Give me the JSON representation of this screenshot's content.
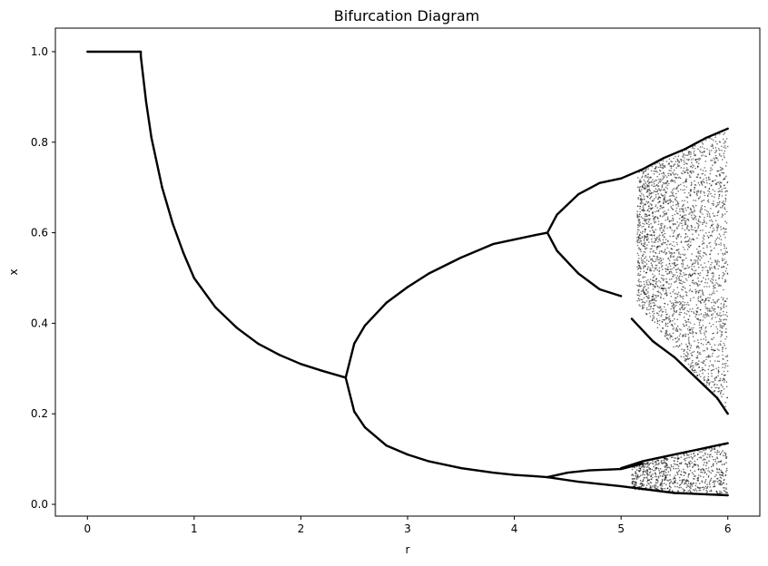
{
  "chart_data": {
    "type": "scatter",
    "title": "Bifurcation Diagram",
    "xlabel": "r",
    "ylabel": "x",
    "xlim": [
      -0.3,
      6.3
    ],
    "ylim": [
      -0.026,
      1.052
    ],
    "x_ticks": [
      0,
      1,
      2,
      3,
      4,
      5,
      6
    ],
    "x_tick_labels": [
      "0",
      "1",
      "2",
      "3",
      "4",
      "5",
      "6"
    ],
    "y_ticks": [
      0.0,
      0.2,
      0.4,
      0.6,
      0.8,
      1.0
    ],
    "y_tick_labels": [
      "0.0",
      "0.2",
      "0.4",
      "0.6",
      "0.8",
      "1.0"
    ],
    "grid": false,
    "marker_color": "#000000",
    "series": [
      {
        "x": [
          0.0,
          0.5,
          0.5,
          0.55,
          0.6,
          0.7,
          0.8,
          0.9,
          1.0,
          1.2,
          1.4,
          1.6,
          1.8,
          2.0,
          2.2,
          2.42
        ],
        "values": [
          1.0,
          1.0,
          0.99,
          0.89,
          0.81,
          0.7,
          0.62,
          0.555,
          0.5,
          0.435,
          0.39,
          0.355,
          0.33,
          0.31,
          0.295,
          0.28
        ]
      },
      {
        "x": [
          2.42,
          2.5,
          2.6,
          2.8,
          3.0,
          3.2,
          3.5,
          3.8,
          4.0,
          4.2,
          4.31,
          4.4,
          4.6,
          4.8,
          5.0
        ],
        "values": [
          0.28,
          0.355,
          0.395,
          0.445,
          0.48,
          0.51,
          0.545,
          0.575,
          0.585,
          0.595,
          0.6,
          0.64,
          0.685,
          0.71,
          0.72
        ]
      },
      {
        "x": [
          4.31,
          4.4,
          4.6,
          4.8,
          5.0
        ],
        "values": [
          0.6,
          0.56,
          0.51,
          0.475,
          0.46
        ]
      },
      {
        "x": [
          2.42,
          2.5,
          2.6,
          2.8,
          3.0,
          3.2,
          3.5,
          3.8,
          4.0,
          4.2,
          4.31,
          4.6,
          5.0,
          5.5,
          6.0
        ],
        "values": [
          0.28,
          0.205,
          0.17,
          0.13,
          0.11,
          0.095,
          0.08,
          0.07,
          0.065,
          0.062,
          0.06,
          0.05,
          0.04,
          0.025,
          0.02
        ]
      },
      {
        "x": [
          4.31,
          4.5,
          4.7,
          4.9,
          5.0,
          5.2
        ],
        "values": [
          0.06,
          0.07,
          0.075,
          0.077,
          0.078,
          0.09
        ]
      },
      {
        "x": [
          5.0,
          5.2,
          5.4,
          5.6,
          5.8,
          6.0
        ],
        "values": [
          0.72,
          0.74,
          0.765,
          0.785,
          0.81,
          0.83
        ]
      },
      {
        "x": [
          5.1,
          5.3,
          5.5,
          5.7,
          5.9,
          6.0
        ],
        "values": [
          0.41,
          0.36,
          0.325,
          0.28,
          0.235,
          0.2
        ]
      },
      {
        "x": [
          5.0,
          5.2,
          5.4,
          5.6,
          5.8,
          6.0
        ],
        "values": [
          0.08,
          0.095,
          0.105,
          0.115,
          0.125,
          0.135
        ]
      }
    ]
  }
}
